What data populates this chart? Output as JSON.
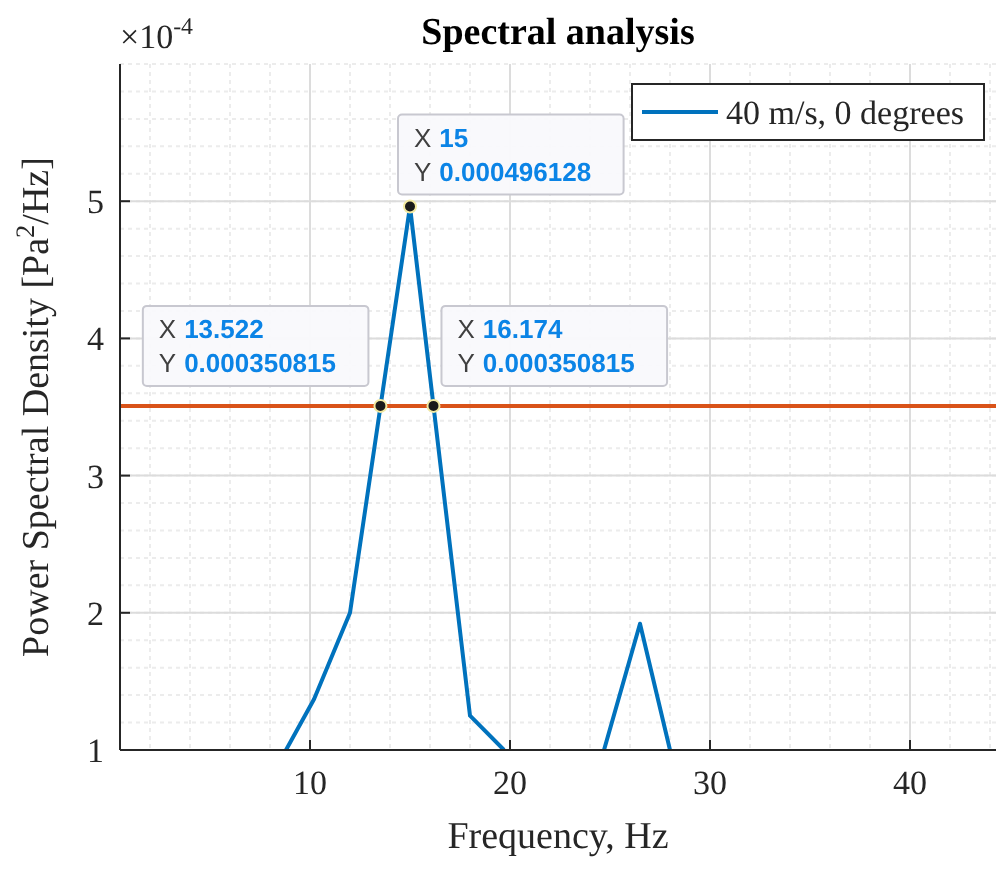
{
  "chart_data": {
    "type": "line",
    "title": "Spectral analysis",
    "xlabel": "Frequency, Hz",
    "ylabel": "Power Spectral Density [Pa$^{2}$/Hz]",
    "x": [
      8.8,
      10.2,
      12,
      15,
      18,
      19.7,
      22,
      24.7,
      26.5,
      28
    ],
    "series": [
      {
        "name": "40 m/s, 0 degrees",
        "color": "#0072bd",
        "values": [
          1,
          1.37,
          2.0,
          4.96128,
          1.25,
          1,
          null,
          1,
          1.92,
          1
        ]
      }
    ],
    "xlim": [
      0.5,
      44.3
    ],
    "xticks": [
      10,
      20,
      30,
      40
    ],
    "ylim": [
      1,
      6
    ],
    "yticks": [
      1,
      2,
      3,
      4,
      5
    ],
    "ref_lines": [
      {
        "axis": "y",
        "value": 3.50815,
        "color": "#d95319"
      }
    ],
    "annotations": [
      "×10$^{-4}$",
      {
        "text": "X 15\nY 0.000496128",
        "x": 15,
        "y": 4.96128
      },
      {
        "text": "X 13.522\nY 0.000350815",
        "x": 13.522,
        "y": 3.50815
      },
      {
        "text": "X 16.174\nY 0.000350815",
        "x": 16.174,
        "y": 3.50815
      }
    ],
    "grid": true,
    "legend": "top right",
    "marker": "none",
    "line_style": "solid"
  }
}
